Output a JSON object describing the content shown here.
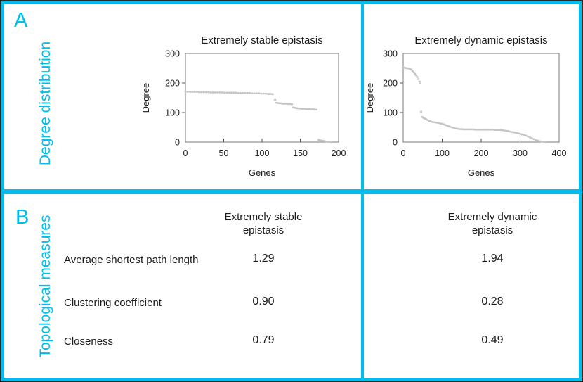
{
  "colors": {
    "accent": "#00bdf0",
    "marker": "#c6c4c4",
    "plot_border": "#8f8f8f",
    "tick": "#555555",
    "text": "#1a1a1a"
  },
  "panel_a": {
    "letter": "A",
    "side_label": "Degree distribution"
  },
  "panel_b": {
    "letter": "B",
    "side_label": "Topological measures",
    "col_headers": [
      {
        "line1": "Extremely stable",
        "line2": "epistasis"
      },
      {
        "line1": "Extremely dynamic",
        "line2": "epistasis"
      }
    ],
    "rows": [
      {
        "label": "Average shortest path length",
        "stable": "1.29",
        "dynamic": "1.94"
      },
      {
        "label": "Clustering coefficient",
        "stable": "0.90",
        "dynamic": "0.28"
      },
      {
        "label": "Closeness",
        "stable": "0.79",
        "dynamic": "0.49"
      }
    ]
  },
  "chart_data": [
    {
      "type": "scatter",
      "title": "Extremely stable epistasis",
      "xlabel": "Genes",
      "ylabel": "Degree",
      "xlim": [
        0,
        200
      ],
      "ylim": [
        0,
        300
      ],
      "xticks": [
        0,
        50,
        100,
        150,
        200
      ],
      "yticks": [
        0,
        100,
        200,
        300
      ],
      "grid": false,
      "legend": null,
      "marker_color": "#c6c4c4",
      "points": [
        [
          0,
          171
        ],
        [
          3,
          170
        ],
        [
          6,
          170
        ],
        [
          9,
          170
        ],
        [
          12,
          170
        ],
        [
          15,
          170
        ],
        [
          18,
          169
        ],
        [
          21,
          169
        ],
        [
          24,
          169
        ],
        [
          27,
          169
        ],
        [
          30,
          169
        ],
        [
          33,
          168
        ],
        [
          36,
          168
        ],
        [
          39,
          168
        ],
        [
          42,
          168
        ],
        [
          45,
          168
        ],
        [
          48,
          168
        ],
        [
          51,
          167
        ],
        [
          54,
          167
        ],
        [
          57,
          167
        ],
        [
          60,
          167
        ],
        [
          63,
          167
        ],
        [
          66,
          167
        ],
        [
          69,
          166
        ],
        [
          72,
          166
        ],
        [
          75,
          166
        ],
        [
          78,
          166
        ],
        [
          81,
          166
        ],
        [
          84,
          166
        ],
        [
          87,
          165
        ],
        [
          90,
          165
        ],
        [
          93,
          165
        ],
        [
          96,
          165
        ],
        [
          99,
          164
        ],
        [
          102,
          164
        ],
        [
          105,
          164
        ],
        [
          108,
          163
        ],
        [
          110,
          163
        ],
        [
          112,
          163
        ],
        [
          114,
          162
        ],
        [
          117,
          143
        ],
        [
          119,
          133
        ],
        [
          121,
          132
        ],
        [
          123,
          131
        ],
        [
          125,
          131
        ],
        [
          127,
          130
        ],
        [
          129,
          130
        ],
        [
          131,
          130
        ],
        [
          133,
          129
        ],
        [
          135,
          129
        ],
        [
          137,
          129
        ],
        [
          139,
          128
        ],
        [
          141,
          117
        ],
        [
          143,
          116
        ],
        [
          145,
          115
        ],
        [
          147,
          114
        ],
        [
          149,
          114
        ],
        [
          151,
          113
        ],
        [
          153,
          113
        ],
        [
          155,
          113
        ],
        [
          157,
          112
        ],
        [
          159,
          112
        ],
        [
          161,
          112
        ],
        [
          163,
          111
        ],
        [
          165,
          111
        ],
        [
          167,
          111
        ],
        [
          169,
          110
        ],
        [
          171,
          110
        ],
        [
          174,
          8
        ],
        [
          176,
          6
        ],
        [
          178,
          5
        ],
        [
          180,
          4
        ],
        [
          182,
          3
        ],
        [
          184,
          2
        ],
        [
          186,
          1
        ],
        [
          188,
          1
        ],
        [
          190,
          0
        ]
      ]
    },
    {
      "type": "scatter",
      "title": "Extremely dynamic epistasis",
      "xlabel": "Genes",
      "ylabel": "Degree",
      "xlim": [
        0,
        400
      ],
      "ylim": [
        0,
        300
      ],
      "xticks": [
        0,
        100,
        200,
        300,
        400
      ],
      "yticks": [
        0,
        100,
        200,
        300
      ],
      "grid": false,
      "legend": null,
      "marker_color": "#c6c4c4",
      "points": [
        [
          0,
          252
        ],
        [
          3,
          252
        ],
        [
          6,
          251
        ],
        [
          9,
          250
        ],
        [
          12,
          250
        ],
        [
          15,
          249
        ],
        [
          18,
          247
        ],
        [
          21,
          245
        ],
        [
          24,
          240
        ],
        [
          27,
          236
        ],
        [
          30,
          231
        ],
        [
          33,
          226
        ],
        [
          36,
          220
        ],
        [
          39,
          213
        ],
        [
          42,
          205
        ],
        [
          44,
          198
        ],
        [
          46,
          103
        ],
        [
          49,
          85
        ],
        [
          52,
          82
        ],
        [
          55,
          80
        ],
        [
          58,
          78
        ],
        [
          62,
          75
        ],
        [
          66,
          72
        ],
        [
          70,
          70
        ],
        [
          75,
          68
        ],
        [
          80,
          67
        ],
        [
          85,
          66
        ],
        [
          90,
          65
        ],
        [
          95,
          63
        ],
        [
          100,
          62
        ],
        [
          105,
          60
        ],
        [
          108,
          58
        ],
        [
          112,
          56
        ],
        [
          116,
          54
        ],
        [
          120,
          52
        ],
        [
          125,
          50
        ],
        [
          130,
          48
        ],
        [
          135,
          46
        ],
        [
          140,
          45
        ],
        [
          145,
          44
        ],
        [
          150,
          44
        ],
        [
          155,
          43
        ],
        [
          160,
          43
        ],
        [
          165,
          43
        ],
        [
          170,
          43
        ],
        [
          175,
          43
        ],
        [
          180,
          43
        ],
        [
          185,
          42
        ],
        [
          190,
          42
        ],
        [
          195,
          42
        ],
        [
          200,
          42
        ],
        [
          205,
          42
        ],
        [
          210,
          42
        ],
        [
          215,
          42
        ],
        [
          220,
          42
        ],
        [
          225,
          42
        ],
        [
          230,
          42
        ],
        [
          235,
          41
        ],
        [
          240,
          41
        ],
        [
          245,
          41
        ],
        [
          250,
          41
        ],
        [
          255,
          40
        ],
        [
          260,
          39
        ],
        [
          265,
          38
        ],
        [
          270,
          37
        ],
        [
          275,
          35
        ],
        [
          280,
          34
        ],
        [
          285,
          33
        ],
        [
          290,
          31
        ],
        [
          295,
          30
        ],
        [
          300,
          28
        ],
        [
          305,
          26
        ],
        [
          310,
          24
        ],
        [
          315,
          22
        ],
        [
          320,
          19
        ],
        [
          325,
          16
        ],
        [
          330,
          13
        ],
        [
          335,
          10
        ],
        [
          340,
          7
        ],
        [
          345,
          5
        ],
        [
          350,
          3
        ],
        [
          355,
          2
        ],
        [
          360,
          1
        ],
        [
          365,
          0
        ]
      ]
    }
  ]
}
